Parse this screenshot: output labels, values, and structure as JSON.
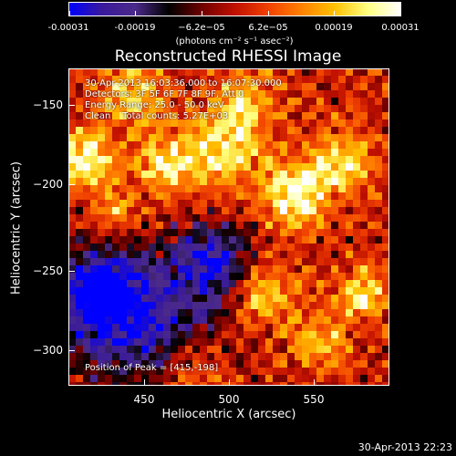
{
  "colorbar": {
    "ticks": [
      "-0.00031",
      "-0.00019",
      "−6.2e−05",
      "6.2e−05",
      "0.00019",
      "0.00031"
    ],
    "units": "(photons cm⁻² s⁻¹ asec⁻²)"
  },
  "title": "Reconstructed RHESSI Image",
  "annotations": {
    "time_range": "30-Apr-2013 16:03:36.000 to 16:07:30.000",
    "detectors": "Detectors: 3F 5F 6F 7F 8F 9F, Att 0",
    "energy": "Energy Range: 25.0 - 50.0 keV",
    "method": "Clean    Total counts: 5.27E+03",
    "peak": "Position of Peak = [415,-198]"
  },
  "axes": {
    "x_label": "Heliocentric X (arcsec)",
    "y_label": "Heliocentric Y (arcsec)",
    "x_ticks": [
      "450",
      "500",
      "550"
    ],
    "y_ticks": [
      "−150",
      "−200",
      "−250",
      "−300"
    ]
  },
  "timestamp": "30-Apr-2013 22:23",
  "colors": {
    "colormap": [
      "#0000ff",
      "#3a1a9a",
      "#4b2a8a",
      "#000000",
      "#700000",
      "#c01000",
      "#f04000",
      "#ff8000",
      "#ffc000",
      "#ffff80",
      "#ffffff"
    ]
  }
}
